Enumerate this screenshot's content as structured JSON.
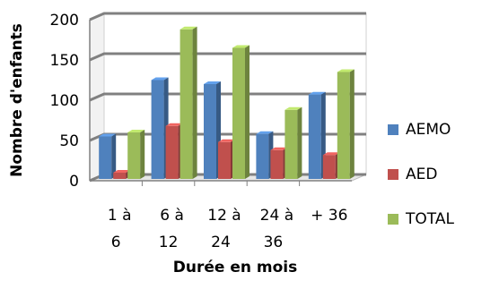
{
  "chart_data": {
    "type": "bar",
    "categories": [
      [
        "1 à",
        "6"
      ],
      [
        "6 à",
        "12"
      ],
      [
        "12 à",
        "24"
      ],
      [
        "24 à",
        "36"
      ],
      [
        "+ 36",
        ""
      ]
    ],
    "series": [
      {
        "name": "AEMO",
        "values": [
          55,
          125,
          120,
          58,
          107
        ],
        "color": "#4F81BD"
      },
      {
        "name": "AED",
        "values": [
          10,
          68,
          48,
          38,
          32
        ],
        "color": "#C0504D"
      },
      {
        "name": "TOTAL",
        "values": [
          60,
          188,
          165,
          88,
          135
        ],
        "color": "#9BBB59"
      }
    ],
    "xlabel": "Durée en mois",
    "ylabel": "Nombre d'enfants",
    "ylim": [
      0,
      200
    ],
    "yticks": [
      0,
      50,
      100,
      150,
      200
    ],
    "grid": true,
    "legend": "right",
    "three_d": true
  }
}
